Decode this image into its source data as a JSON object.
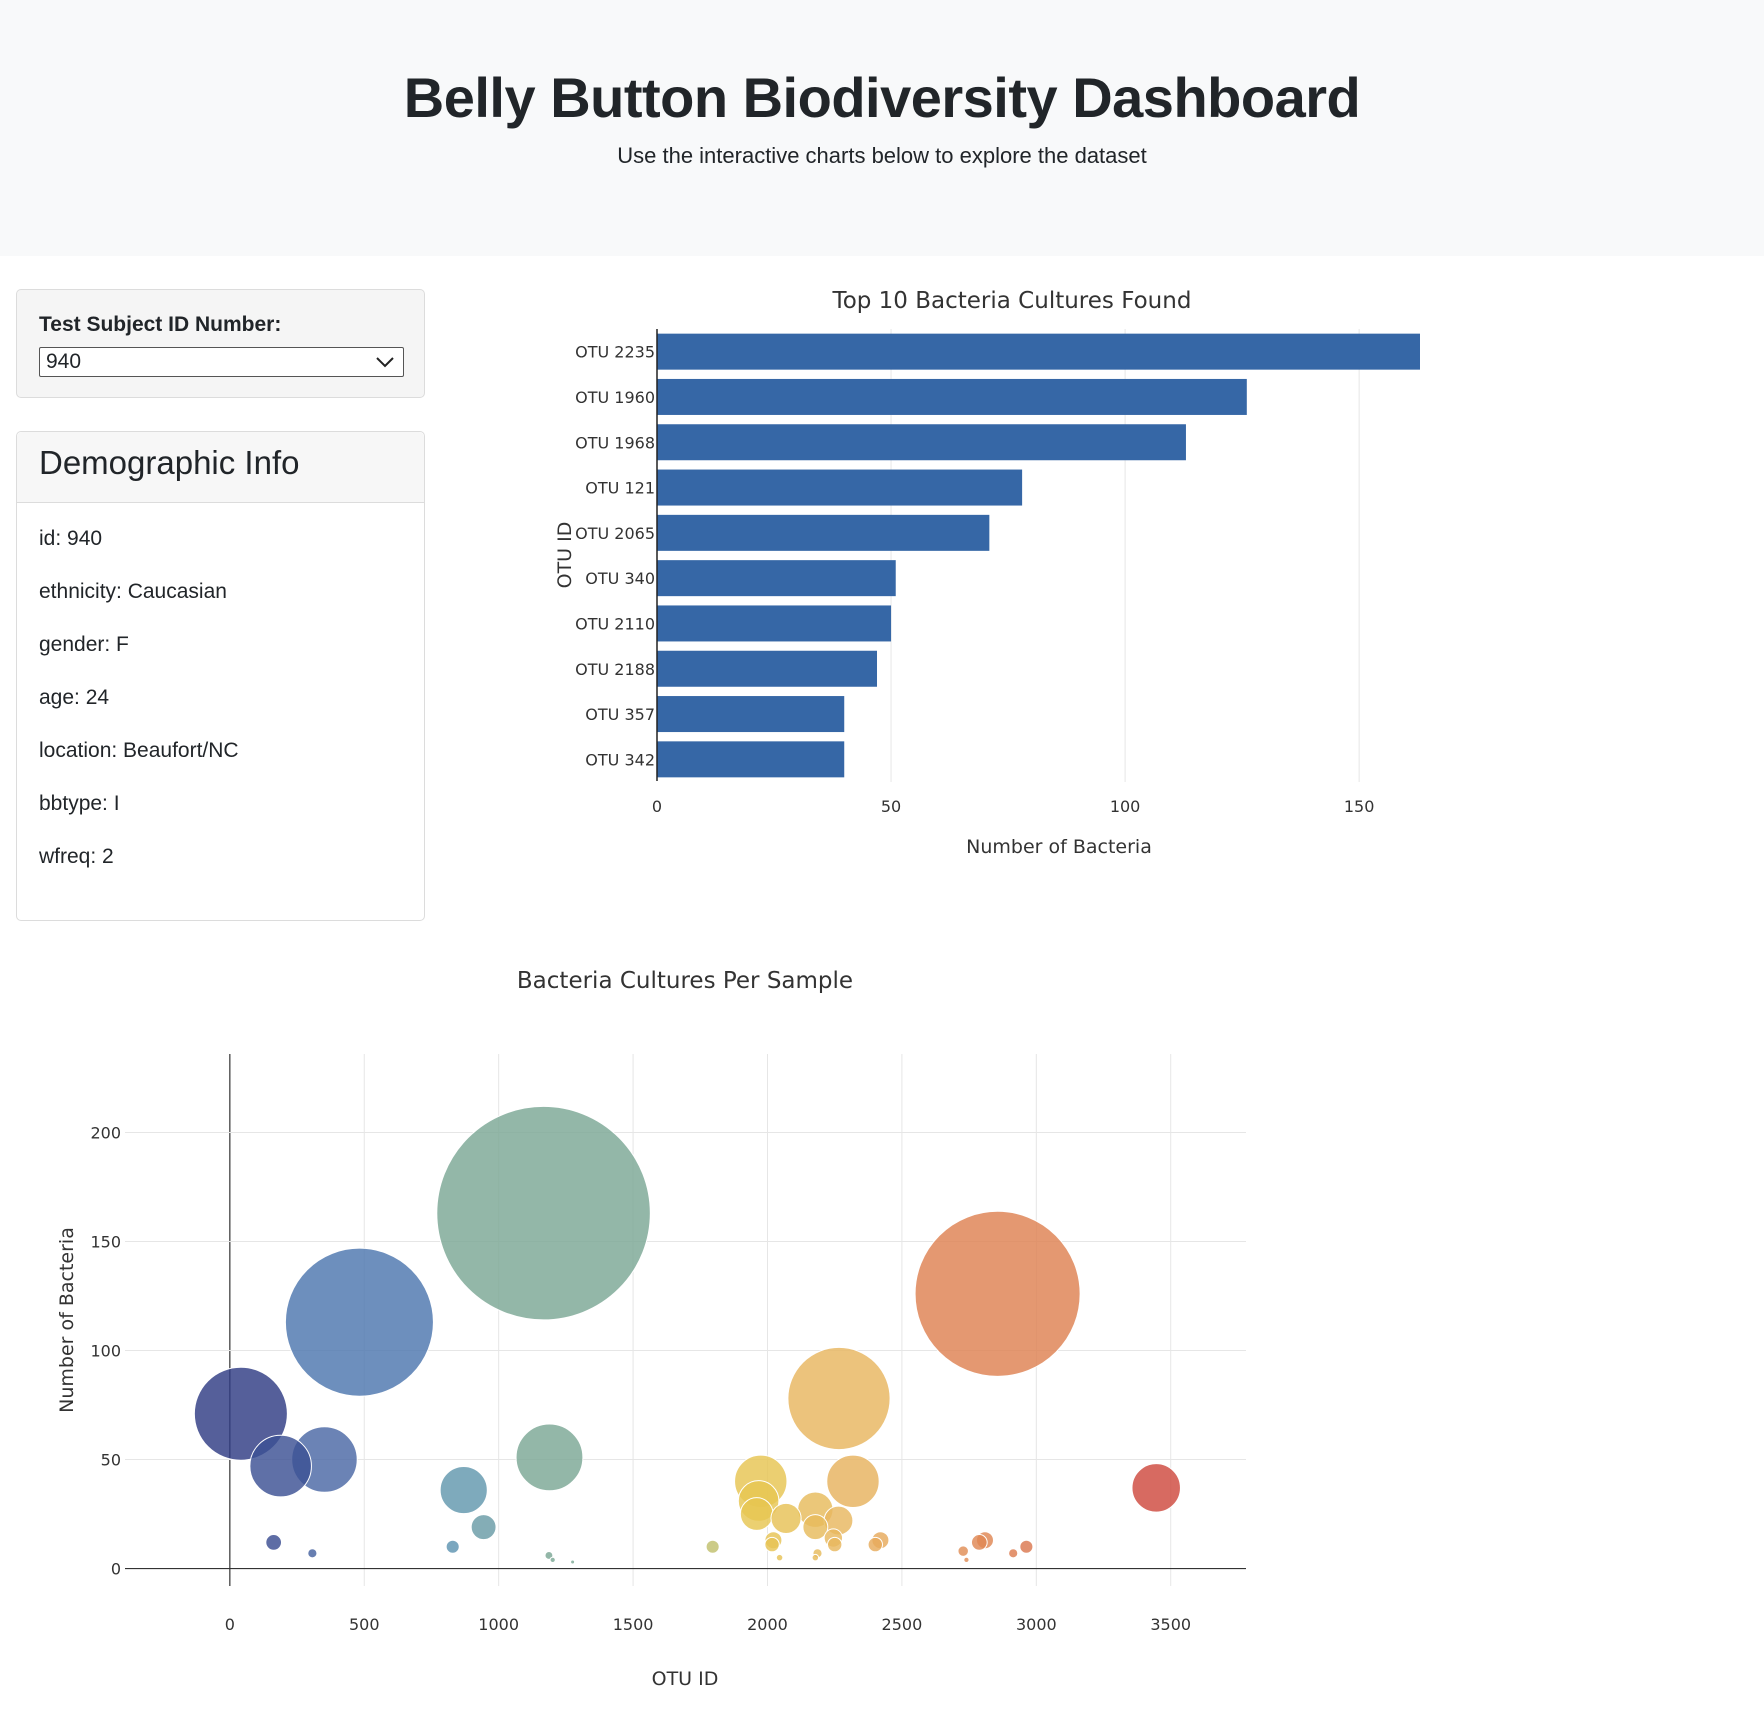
{
  "header": {
    "title": "Belly Button Biodiversity Dashboard",
    "subtitle": "Use the interactive charts below to explore the dataset"
  },
  "selector": {
    "label": "Test Subject ID Number:",
    "selected": "940"
  },
  "demographics": {
    "title": "Demographic Info",
    "rows": [
      "id: 940",
      "ethnicity: Caucasian",
      "gender: F",
      "age: 24",
      "location: Beaufort/NC",
      "bbtype: I",
      "wfreq: 2"
    ]
  },
  "colors": {
    "bar": "#3667a6",
    "header_bg": "#f8f9fa"
  },
  "chart_data": [
    {
      "type": "bar",
      "orientation": "horizontal",
      "title": "Top 10 Bacteria Cultures Found",
      "xlabel": "Number of Bacteria",
      "ylabel": "OTU ID",
      "categories": [
        "OTU 2235",
        "OTU 1960",
        "OTU 1968",
        "OTU 121",
        "OTU 2065",
        "OTU 340",
        "OTU 2110",
        "OTU 2188",
        "OTU 357",
        "OTU 342"
      ],
      "values": [
        163,
        126,
        113,
        78,
        71,
        51,
        50,
        47,
        40,
        40
      ],
      "xlim": [
        0,
        163
      ],
      "xticks": [
        0,
        50,
        100,
        150
      ],
      "grid": true
    },
    {
      "type": "scatter",
      "subtype": "bubble",
      "title": "Bacteria Cultures Per Sample",
      "xlabel": "OTU ID",
      "ylabel": "Number of Bacteria",
      "xlim": [
        -390,
        3780
      ],
      "ylim": [
        -8,
        236
      ],
      "xticks": [
        0,
        500,
        1000,
        1500,
        2000,
        2500,
        3000,
        3500
      ],
      "yticks": [
        0,
        50,
        100,
        150,
        200
      ],
      "grid": true,
      "marker_size": "proportional to number of bacteria",
      "colorscale": "Earth, by OTU ID",
      "points": [
        {
          "x": 41,
          "y": 71
        },
        {
          "x": 189,
          "y": 47
        },
        {
          "x": 352,
          "y": 50
        },
        {
          "x": 482,
          "y": 113
        },
        {
          "x": 163,
          "y": 12
        },
        {
          "x": 307,
          "y": 7
        },
        {
          "x": 870,
          "y": 36
        },
        {
          "x": 944,
          "y": 19
        },
        {
          "x": 829,
          "y": 10
        },
        {
          "x": 1167,
          "y": 163
        },
        {
          "x": 1189,
          "y": 51
        },
        {
          "x": 1187,
          "y": 6
        },
        {
          "x": 1275,
          "y": 3
        },
        {
          "x": 1201,
          "y": 4
        },
        {
          "x": 1975,
          "y": 40
        },
        {
          "x": 1967,
          "y": 31
        },
        {
          "x": 1960,
          "y": 25
        },
        {
          "x": 2069,
          "y": 23
        },
        {
          "x": 2022,
          "y": 13
        },
        {
          "x": 2017,
          "y": 11
        },
        {
          "x": 1796,
          "y": 10
        },
        {
          "x": 2045,
          "y": 5
        },
        {
          "x": 2178,
          "y": 27
        },
        {
          "x": 2178,
          "y": 19
        },
        {
          "x": 2266,
          "y": 78
        },
        {
          "x": 2318,
          "y": 40
        },
        {
          "x": 2264,
          "y": 22
        },
        {
          "x": 2245,
          "y": 14
        },
        {
          "x": 2250,
          "y": 11
        },
        {
          "x": 2420,
          "y": 13
        },
        {
          "x": 2401,
          "y": 11
        },
        {
          "x": 2186,
          "y": 7
        },
        {
          "x": 2178,
          "y": 5
        },
        {
          "x": 2856,
          "y": 126
        },
        {
          "x": 2809,
          "y": 13
        },
        {
          "x": 2788,
          "y": 12
        },
        {
          "x": 2963,
          "y": 10
        },
        {
          "x": 2728,
          "y": 8
        },
        {
          "x": 2914,
          "y": 7
        },
        {
          "x": 2740,
          "y": 4
        },
        {
          "x": 3446,
          "y": 37
        }
      ]
    }
  ]
}
